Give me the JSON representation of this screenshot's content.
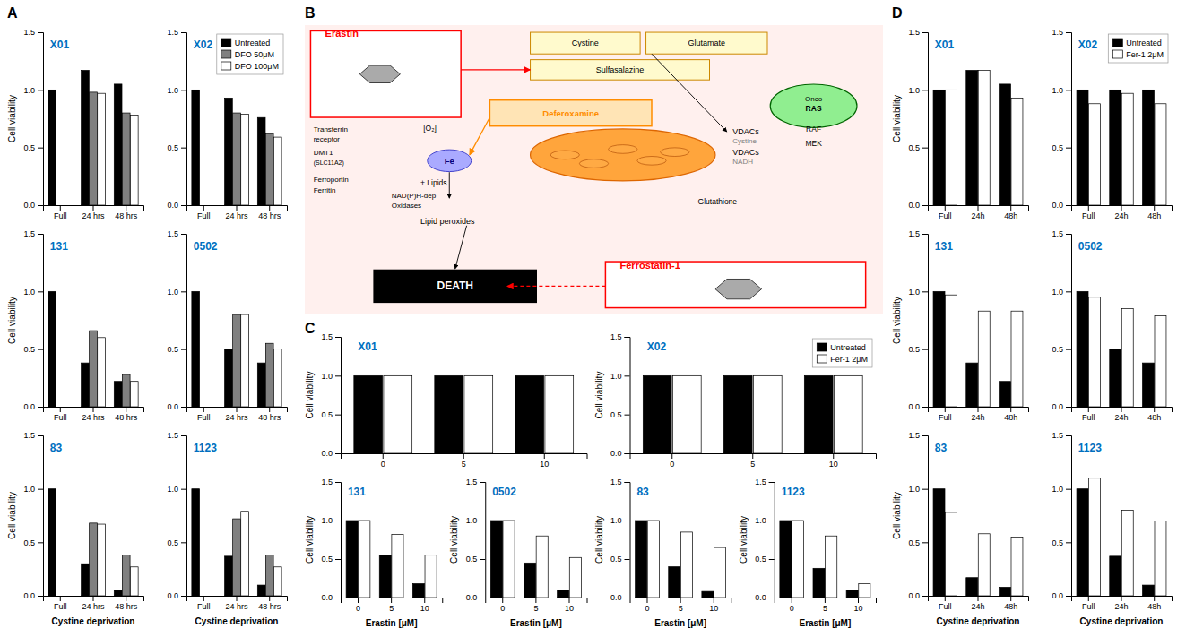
{
  "chart_data": [
    {
      "type": "bar",
      "title": "X01",
      "annotations": [
        "A"
      ],
      "categories": [
        "Full",
        "24 hrs",
        "48 hrs"
      ],
      "series": [
        {
          "color": "black",
          "values": [
            1.0,
            1.17,
            1.05
          ]
        },
        {
          "color": "#808080",
          "values": [
            0.0,
            0.98,
            0.8
          ]
        },
        {
          "color": "white",
          "values": [
            0.0,
            0.97,
            0.78
          ]
        }
      ],
      "ylabel": "Cell viability",
      "ylim": [
        0,
        1.5
      ],
      "yticks": [
        {
          "value": 0.0,
          "label": "0.0"
        },
        0.5,
        {
          "value": 1.0,
          "label": "1.0"
        },
        {
          "value": 1.5,
          "label": "1.5"
        }
      ]
    },
    {
      "type": "bar",
      "title": "X02",
      "categories": [
        "Full",
        "24 hrs",
        "48 hrs"
      ],
      "series": [
        {
          "name": "Untreated",
          "color": "black",
          "values": [
            1.0,
            0.93,
            0.76
          ]
        },
        {
          "name": "DFO 50μM",
          "color": "#808080",
          "values": [
            0.0,
            0.8,
            0.62
          ]
        },
        {
          "name": "DFO 100μM",
          "color": "white",
          "values": [
            0.0,
            0.79,
            0.59
          ]
        }
      ],
      "legend": "top-right",
      "ylim": [
        0,
        1.5
      ],
      "yticks": [
        {
          "value": 0.0,
          "label": "0.0"
        },
        0.5,
        {
          "value": 1.0,
          "label": "1.0"
        },
        {
          "value": 1.5,
          "label": "1.5"
        }
      ]
    },
    {
      "type": "bar",
      "title": "131",
      "categories": [
        "Full",
        "24 hrs",
        "48 hrs"
      ],
      "series": [
        {
          "color": "black",
          "values": [
            1.0,
            0.38,
            0.22
          ]
        },
        {
          "color": "#808080",
          "values": [
            0.0,
            0.66,
            0.28
          ]
        },
        {
          "color": "white",
          "values": [
            0.0,
            0.6,
            0.22
          ]
        }
      ],
      "ylabel": "Cell viability",
      "ylim": [
        0,
        1.5
      ],
      "yticks": [
        {
          "value": 0.0,
          "label": "0.0"
        },
        0.5,
        {
          "value": 1.0,
          "label": "1.0"
        },
        {
          "value": 1.5,
          "label": "1.5"
        }
      ]
    },
    {
      "type": "bar",
      "title": "0502",
      "categories": [
        "Full",
        "24 hrs",
        "48 hrs"
      ],
      "series": [
        {
          "color": "black",
          "values": [
            1.0,
            0.5,
            0.38
          ]
        },
        {
          "color": "#808080",
          "values": [
            0.0,
            0.8,
            0.55
          ]
        },
        {
          "color": "white",
          "values": [
            0.0,
            0.8,
            0.5
          ]
        }
      ],
      "ylim": [
        0,
        1.5
      ],
      "yticks": [
        {
          "value": 0.0,
          "label": "0.0"
        },
        0.5,
        {
          "value": 1.0,
          "label": "1.0"
        },
        {
          "value": 1.5,
          "label": "1.5"
        }
      ]
    },
    {
      "type": "bar",
      "title": "83",
      "categories": [
        "Full",
        "24 hrs",
        "48 hrs"
      ],
      "series": [
        {
          "color": "black",
          "values": [
            1.0,
            0.3,
            0.05
          ]
        },
        {
          "color": "#808080",
          "values": [
            0.0,
            0.68,
            0.38
          ]
        },
        {
          "color": "white",
          "values": [
            0.0,
            0.67,
            0.27
          ]
        }
      ],
      "xlabel": "Cystine deprivation",
      "ylabel": "Cell viability",
      "ylim": [
        0,
        1.5
      ],
      "yticks": [
        {
          "value": 0.0,
          "label": "0.0"
        },
        0.5,
        {
          "value": 1.0,
          "label": "1.0"
        },
        {
          "value": 1.5,
          "label": "1.5"
        }
      ]
    },
    {
      "type": "bar",
      "title": "1123",
      "categories": [
        "Full",
        "24 hrs",
        "48 hrs"
      ],
      "series": [
        {
          "color": "black",
          "values": [
            1.0,
            0.37,
            0.1
          ]
        },
        {
          "color": "#808080",
          "values": [
            0.0,
            0.72,
            0.38
          ]
        },
        {
          "color": "white",
          "values": [
            0.0,
            0.79,
            0.27
          ]
        }
      ],
      "xlabel": "Cystine deprivation",
      "ylim": [
        0,
        1.5
      ],
      "yticks": [
        {
          "value": 0.0,
          "label": "0.0"
        },
        0.5,
        {
          "value": 1.0,
          "label": "1.0"
        },
        {
          "value": 1.5,
          "label": "1.5"
        }
      ]
    },
    {
      "type": "diagram",
      "annotations": [
        "B",
        "Erastin",
        "Cystine",
        "Glutamate",
        "Sulfasalazine",
        "Deferoxamine",
        "VDACs",
        "VDACs",
        "Cystine",
        "NADH",
        "Onco",
        "RAS",
        "RAF",
        "MEK",
        "Transferrin",
        "receptor",
        "DMT1",
        "(SLC11A2)",
        "Ferroportin",
        "Ferritin",
        "[O₂]",
        "Fe",
        "+ Lipids",
        "NAD(P)H-dep",
        "Oxidases",
        "Lipid peroxides",
        "Glutathione",
        "DEATH",
        "Ferrostatin-1"
      ]
    },
    {
      "type": "bar",
      "title": "X01",
      "annotations": [
        "C"
      ],
      "categories": [
        0,
        5,
        10
      ],
      "series": [
        {
          "color": "black",
          "values": [
            1.0,
            1.0,
            1.0
          ]
        },
        {
          "color": "white",
          "values": [
            1.0,
            1.0,
            1.0
          ]
        }
      ],
      "ylabel": "Cell viability",
      "ylim": [
        0,
        1.5
      ],
      "yticks": [
        {
          "value": 0.0,
          "label": "0.0"
        },
        0.5,
        {
          "value": 1.0,
          "label": "1.0"
        },
        {
          "value": 1.5,
          "label": "1.5"
        }
      ]
    },
    {
      "type": "bar",
      "title": "X02",
      "categories": [
        0,
        5,
        10
      ],
      "series": [
        {
          "name": "Untreated",
          "color": "black",
          "values": [
            1.0,
            1.0,
            1.0
          ]
        },
        {
          "name": "Fer-1 2μM",
          "color": "white",
          "values": [
            1.0,
            1.0,
            1.0
          ]
        }
      ],
      "legend": "top-right",
      "ylabel": "Cell viability",
      "ylim": [
        0,
        1.5
      ],
      "yticks": [
        {
          "value": 0.0,
          "label": "0.0"
        },
        0.5,
        {
          "value": 1.0,
          "label": "1.0"
        },
        {
          "value": 1.5,
          "label": "1.5"
        }
      ]
    },
    {
      "type": "bar",
      "title": "131",
      "categories": [
        0,
        5,
        10
      ],
      "series": [
        {
          "color": "black",
          "values": [
            1.0,
            0.55,
            0.18
          ]
        },
        {
          "color": "white",
          "values": [
            1.0,
            0.82,
            0.55
          ]
        }
      ],
      "xlabel": "Erastin [μM]",
      "ylabel": "Cell viability",
      "ylim": [
        0,
        1.5
      ],
      "yticks": [
        {
          "value": 0.0,
          "label": "0.0"
        },
        0.5,
        {
          "value": 1.0,
          "label": "1.0"
        },
        {
          "value": 1.5,
          "label": "1.5"
        }
      ]
    },
    {
      "type": "bar",
      "title": "0502",
      "categories": [
        0,
        5,
        10
      ],
      "series": [
        {
          "color": "black",
          "values": [
            1.0,
            0.45,
            0.1
          ]
        },
        {
          "color": "white",
          "values": [
            1.0,
            0.8,
            0.52
          ]
        }
      ],
      "xlabel": "Erastin [μM]",
      "ylabel": "Cell viability",
      "ylim": [
        0,
        1.5
      ],
      "yticks": [
        {
          "value": 0.0,
          "label": "0.0"
        },
        0.5,
        {
          "value": 1.0,
          "label": "1.0"
        },
        {
          "value": 1.5,
          "label": "1.5"
        }
      ]
    },
    {
      "type": "bar",
      "title": "83",
      "categories": [
        0,
        5,
        10
      ],
      "series": [
        {
          "color": "black",
          "values": [
            1.0,
            0.4,
            0.08
          ]
        },
        {
          "color": "white",
          "values": [
            1.0,
            0.85,
            0.65
          ]
        }
      ],
      "xlabel": "Erastin [μM]",
      "ylabel": "Cell viability",
      "ylim": [
        0,
        1.5
      ],
      "yticks": [
        {
          "value": 0.0,
          "label": "0.0"
        },
        0.5,
        {
          "value": 1.0,
          "label": "1.0"
        },
        {
          "value": 1.5,
          "label": "1.5"
        }
      ]
    },
    {
      "type": "bar",
      "title": "1123",
      "categories": [
        0,
        5,
        10
      ],
      "series": [
        {
          "color": "black",
          "values": [
            1.0,
            0.38,
            0.1
          ]
        },
        {
          "color": "white",
          "values": [
            1.0,
            0.8,
            0.18
          ]
        }
      ],
      "xlabel": "Erastin [μM]",
      "ylabel": "Cell viability",
      "ylim": [
        0,
        1.5
      ],
      "yticks": [
        {
          "value": 0.0,
          "label": "0.0"
        },
        0.5,
        {
          "value": 1.0,
          "label": "1.0"
        },
        {
          "value": 1.5,
          "label": "1.5"
        }
      ]
    },
    {
      "type": "bar",
      "title": "X01",
      "annotations": [
        "D"
      ],
      "categories": [
        "Full",
        "24h",
        "48h"
      ],
      "series": [
        {
          "color": "black",
          "values": [
            1.0,
            1.17,
            1.05
          ]
        },
        {
          "color": "white",
          "values": [
            1.0,
            1.17,
            0.93
          ]
        }
      ],
      "ylabel": "Cell viability",
      "ylim": [
        0,
        1.5
      ],
      "yticks": [
        {
          "value": 0.0,
          "label": "0.0"
        },
        0.5,
        {
          "value": 1.0,
          "label": "1.0"
        },
        {
          "value": 1.5,
          "label": "1.5"
        }
      ]
    },
    {
      "type": "bar",
      "title": "X02",
      "categories": [
        "Full",
        "24h",
        "48h"
      ],
      "series": [
        {
          "name": "Untreated",
          "color": "black",
          "values": [
            1.0,
            1.0,
            1.0
          ]
        },
        {
          "name": "Fer-1 2μM",
          "color": "white",
          "values": [
            0.88,
            0.97,
            0.88
          ]
        }
      ],
      "legend": "top-right",
      "ylim": [
        0,
        1.5
      ],
      "yticks": [
        {
          "value": 0.0,
          "label": "0.0"
        },
        0.5,
        {
          "value": 1.0,
          "label": "1.0"
        },
        {
          "value": 1.5,
          "label": "1.5"
        }
      ]
    },
    {
      "type": "bar",
      "title": "131",
      "categories": [
        "Full",
        "24h",
        "48h"
      ],
      "series": [
        {
          "color": "black",
          "values": [
            1.0,
            0.38,
            0.22
          ]
        },
        {
          "color": "white",
          "values": [
            0.97,
            0.83,
            0.83
          ]
        }
      ],
      "ylabel": "Cell viability",
      "ylim": [
        0,
        1.5
      ],
      "yticks": [
        {
          "value": 0.0,
          "label": "0.0"
        },
        0.5,
        {
          "value": 1.0,
          "label": "1.0"
        },
        {
          "value": 1.5,
          "label": "1.5"
        }
      ]
    },
    {
      "type": "bar",
      "title": "0502",
      "categories": [
        "Full",
        "24h",
        "48h"
      ],
      "series": [
        {
          "color": "black",
          "values": [
            1.0,
            0.5,
            0.38
          ]
        },
        {
          "color": "white",
          "values": [
            0.95,
            0.85,
            0.79
          ]
        }
      ],
      "ylim": [
        0,
        1.5
      ],
      "yticks": [
        {
          "value": 0.0,
          "label": "0.0"
        },
        0.5,
        {
          "value": 1.0,
          "label": "1.0"
        },
        {
          "value": 1.5,
          "label": "1.5"
        }
      ]
    },
    {
      "type": "bar",
      "title": "83",
      "categories": [
        "Full",
        "24h",
        "48h"
      ],
      "series": [
        {
          "color": "black",
          "values": [
            1.0,
            0.17,
            0.08
          ]
        },
        {
          "color": "white",
          "values": [
            0.78,
            0.58,
            0.55
          ]
        }
      ],
      "xlabel": "Cystine deprivation",
      "ylabel": "Cell viability",
      "ylim": [
        0,
        1.5
      ],
      "yticks": [
        {
          "value": 0.0,
          "label": "0.0"
        },
        0.5,
        {
          "value": 1.0,
          "label": "1.0"
        },
        {
          "value": 1.5,
          "label": "1.5"
        }
      ]
    },
    {
      "type": "bar",
      "title": "1123",
      "categories": [
        "Full",
        "24h",
        "48h"
      ],
      "series": [
        {
          "color": "black",
          "values": [
            1.0,
            0.37,
            0.1
          ]
        },
        {
          "color": "white",
          "values": [
            1.1,
            0.8,
            0.7
          ]
        }
      ],
      "xlabel": "Cystine deprivation",
      "ylim": [
        0,
        1.5
      ],
      "yticks": [
        {
          "value": 0.0,
          "label": "0.0"
        },
        0.5,
        {
          "value": 1.0,
          "label": "1.0"
        },
        {
          "value": 1.5,
          "label": "1.5"
        }
      ]
    }
  ]
}
